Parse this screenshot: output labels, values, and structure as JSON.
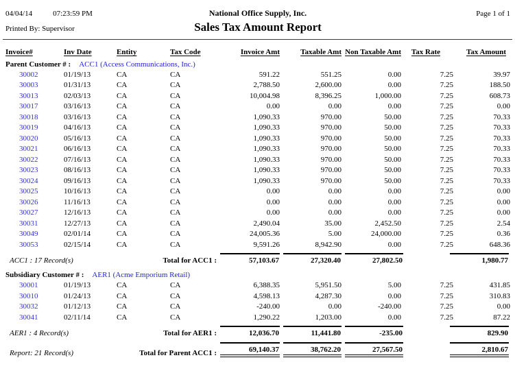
{
  "header": {
    "date": "04/04/14",
    "time": "07:23:59 PM",
    "company": "National Office Supply, Inc.",
    "page": "Page 1 of 1",
    "printed_by": "Printed By: Supervisor",
    "title": "Sales Tax Amount Report"
  },
  "colors": {
    "link_blue": "#3333cc",
    "customer_blue": "#2222dd"
  },
  "table": {
    "columns": [
      "Invoice#",
      "Inv Date",
      "Entity",
      "Tax Code",
      "Invoice Amt",
      "Taxable Amt",
      "Non Taxable Amt",
      "Tax Rate",
      "Tax Amount"
    ],
    "groups": [
      {
        "label": "Parent Customer # :",
        "customer": "ACC1 (Access Communications, Inc.)",
        "rows": [
          [
            "30002",
            "01/19/13",
            "CA",
            "CA",
            "591.22",
            "551.25",
            "0.00",
            "7.25",
            "39.97"
          ],
          [
            "30003",
            "01/31/13",
            "CA",
            "CA",
            "2,788.50",
            "2,600.00",
            "0.00",
            "7.25",
            "188.50"
          ],
          [
            "30013",
            "02/03/13",
            "CA",
            "CA",
            "10,004.98",
            "8,396.25",
            "1,000.00",
            "7.25",
            "608.73"
          ],
          [
            "30017",
            "03/16/13",
            "CA",
            "CA",
            "0.00",
            "0.00",
            "0.00",
            "7.25",
            "0.00"
          ],
          [
            "30018",
            "03/16/13",
            "CA",
            "CA",
            "1,090.33",
            "970.00",
            "50.00",
            "7.25",
            "70.33"
          ],
          [
            "30019",
            "04/16/13",
            "CA",
            "CA",
            "1,090.33",
            "970.00",
            "50.00",
            "7.25",
            "70.33"
          ],
          [
            "30020",
            "05/16/13",
            "CA",
            "CA",
            "1,090.33",
            "970.00",
            "50.00",
            "7.25",
            "70.33"
          ],
          [
            "30021",
            "06/16/13",
            "CA",
            "CA",
            "1,090.33",
            "970.00",
            "50.00",
            "7.25",
            "70.33"
          ],
          [
            "30022",
            "07/16/13",
            "CA",
            "CA",
            "1,090.33",
            "970.00",
            "50.00",
            "7.25",
            "70.33"
          ],
          [
            "30023",
            "08/16/13",
            "CA",
            "CA",
            "1,090.33",
            "970.00",
            "50.00",
            "7.25",
            "70.33"
          ],
          [
            "30024",
            "09/16/13",
            "CA",
            "CA",
            "1,090.33",
            "970.00",
            "50.00",
            "7.25",
            "70.33"
          ],
          [
            "30025",
            "10/16/13",
            "CA",
            "CA",
            "0.00",
            "0.00",
            "0.00",
            "7.25",
            "0.00"
          ],
          [
            "30026",
            "11/16/13",
            "CA",
            "CA",
            "0.00",
            "0.00",
            "0.00",
            "7.25",
            "0.00"
          ],
          [
            "30027",
            "12/16/13",
            "CA",
            "CA",
            "0.00",
            "0.00",
            "0.00",
            "7.25",
            "0.00"
          ],
          [
            "30031",
            "12/27/13",
            "CA",
            "CA",
            "2,490.04",
            "35.00",
            "2,452.50",
            "7.25",
            "2.54"
          ],
          [
            "30049",
            "02/01/14",
            "CA",
            "CA",
            "24,005.36",
            "5.00",
            "24,000.00",
            "7.25",
            "0.36"
          ],
          [
            "30053",
            "02/15/14",
            "CA",
            "CA",
            "9,591.26",
            "8,942.90",
            "0.00",
            "7.25",
            "648.36"
          ]
        ],
        "summary": {
          "records": "ACC1 : 17 Record(s)",
          "total_label": "Total for ACC1 :",
          "invoice_amt": "57,103.67",
          "taxable_amt": "27,320.40",
          "non_taxable_amt": "27,802.50",
          "tax_amount": "1,980.77"
        }
      },
      {
        "label": "Subsidiary Customer # :",
        "customer": "AER1 (Acme Emporium Retail)",
        "rows": [
          [
            "30001",
            "01/19/13",
            "CA",
            "CA",
            "6,388.35",
            "5,951.50",
            "5.00",
            "7.25",
            "431.85"
          ],
          [
            "30010",
            "01/24/13",
            "CA",
            "CA",
            "4,598.13",
            "4,287.30",
            "0.00",
            "7.25",
            "310.83"
          ],
          [
            "30032",
            "01/12/13",
            "CA",
            "CA",
            "-240.00",
            "0.00",
            "-240.00",
            "7.25",
            "0.00"
          ],
          [
            "30041",
            "02/11/14",
            "CA",
            "CA",
            "1,290.22",
            "1,203.00",
            "0.00",
            "7.25",
            "87.22"
          ]
        ],
        "summary": {
          "records": "AER1 : 4 Record(s)",
          "total_label": "Total for AER1 :",
          "invoice_amt": "12,036.70",
          "taxable_amt": "11,441.80",
          "non_taxable_amt": "-235.00",
          "tax_amount": "829.90"
        }
      }
    ],
    "report_summary": {
      "records": "Report: 21 Record(s)",
      "total_label": "Total for Parent ACC1 :",
      "invoice_amt": "69,140.37",
      "taxable_amt": "38,762.20",
      "non_taxable_amt": "27,567.50",
      "tax_amount": "2,810.67"
    }
  }
}
